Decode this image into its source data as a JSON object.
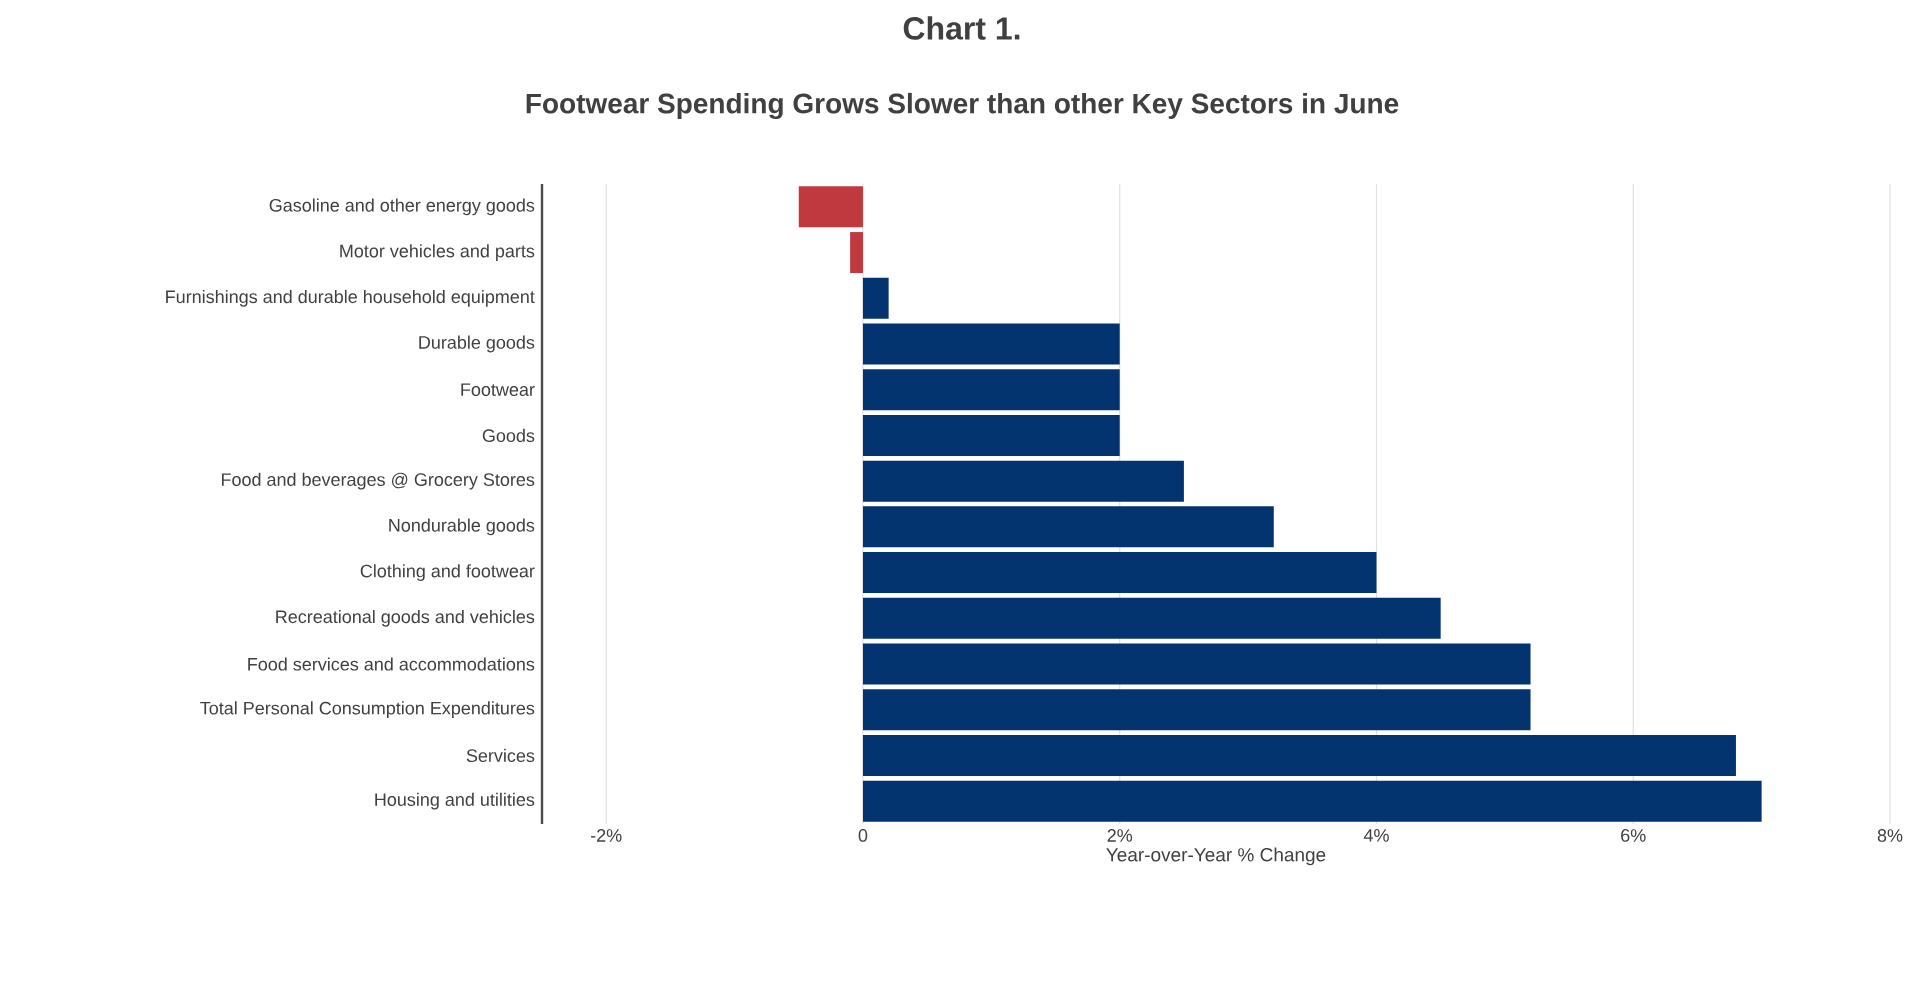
{
  "chart_data": {
    "type": "bar",
    "orientation": "horizontal",
    "title": "Chart 1.",
    "subtitle": "Footwear Spending Grows Slower than other Key Sectors in June",
    "xlabel": "Year-over-Year % Change",
    "categories": [
      "Gasoline and other energy goods",
      "Motor vehicles and parts",
      "Furnishings and durable household equipment",
      "Durable goods",
      "Footwear",
      "Goods",
      "Food and beverages @ Grocery Stores",
      "Nondurable goods",
      "Clothing and footwear",
      "Recreational goods and vehicles",
      "Food services and accommodations",
      "Total Personal Consumption Expenditures",
      "Services",
      "Housing and utilities"
    ],
    "values": [
      -0.5,
      -0.1,
      0.2,
      2.0,
      2.0,
      2.0,
      2.5,
      3.2,
      4.0,
      4.5,
      5.2,
      5.2,
      6.8,
      7.0
    ],
    "colors": [
      "#c0393f",
      "#c0393f",
      "#04346f",
      "#04346f",
      "#04346f",
      "#04346f",
      "#04346f",
      "#04346f",
      "#04346f",
      "#04346f",
      "#04346f",
      "#04346f",
      "#04346f",
      "#04346f"
    ],
    "xlim": [
      -2.5,
      8
    ],
    "xticks": [
      {
        "value": -2,
        "label": "-2%"
      },
      0,
      {
        "value": 2,
        "label": "2%"
      },
      {
        "value": 4,
        "label": "4%"
      },
      {
        "value": 6,
        "label": "6%"
      },
      {
        "value": 8,
        "label": "8%"
      }
    ],
    "grid": "x"
  }
}
